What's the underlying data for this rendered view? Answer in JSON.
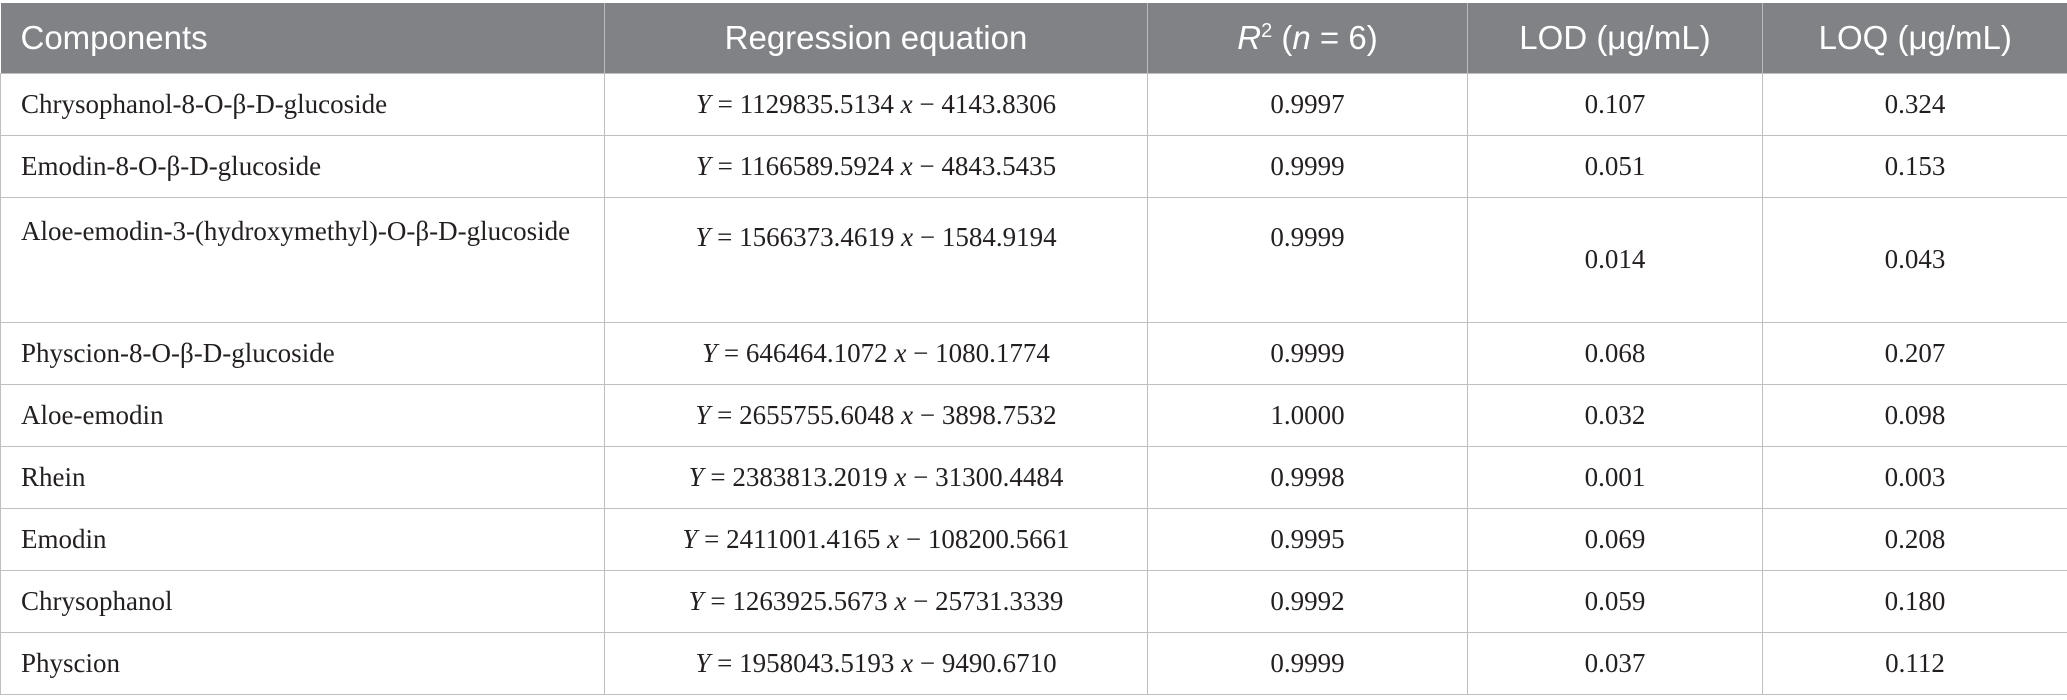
{
  "table": {
    "headers": {
      "components": "Components",
      "regression": "Regression equation",
      "r2_base": "R",
      "r2_sup": "2",
      "r2_open": " (",
      "r2_n": "n",
      "r2_close": " = 6)",
      "lod": "LOD (μg/mL)",
      "loq": "LOQ (μg/mL)"
    },
    "rows": [
      {
        "component": "Chrysophanol-8-O-β-D-glucoside",
        "eq_y": "Y",
        "eq_mid": " = 1129835.5134 ",
        "eq_x": "x",
        "eq_end": " − 4143.8306",
        "r2": "0.9997",
        "lod": "0.107",
        "loq": "0.324"
      },
      {
        "component": "Emodin-8-O-β-D-glucoside",
        "eq_y": "Y",
        "eq_mid": " = 1166589.5924 ",
        "eq_x": "x",
        "eq_end": " − 4843.5435",
        "r2": "0.9999",
        "lod": "0.051",
        "loq": "0.153"
      },
      {
        "component": "Aloe-emodin-3-(hydroxymethyl)-O-β-D-glucoside",
        "eq_y": "Y",
        "eq_mid": " = 1566373.4619 ",
        "eq_x": "x",
        "eq_end": " − 1584.9194",
        "r2": "0.9999",
        "lod": "0.014",
        "loq": "0.043"
      },
      {
        "component": "Physcion-8-O-β-D-glucoside",
        "eq_y": "Y",
        "eq_mid": " = 646464.1072 ",
        "eq_x": "x",
        "eq_end": " − 1080.1774",
        "r2": "0.9999",
        "lod": "0.068",
        "loq": "0.207"
      },
      {
        "component": "Aloe-emodin",
        "eq_y": "Y",
        "eq_mid": " = 2655755.6048 ",
        "eq_x": "x",
        "eq_end": " − 3898.7532",
        "r2": "1.0000",
        "lod": "0.032",
        "loq": "0.098"
      },
      {
        "component": "Rhein",
        "eq_y": "Y",
        "eq_mid": " = 2383813.2019 ",
        "eq_x": "x",
        "eq_end": " − 31300.4484",
        "r2": "0.9998",
        "lod": "0.001",
        "loq": "0.003"
      },
      {
        "component": "Emodin",
        "eq_y": "Y",
        "eq_mid": " = 2411001.4165 ",
        "eq_x": "x",
        "eq_end": " − 108200.5661",
        "r2": "0.9995",
        "lod": "0.069",
        "loq": "0.208"
      },
      {
        "component": "Chrysophanol",
        "eq_y": "Y",
        "eq_mid": " = 1263925.5673 ",
        "eq_x": "x",
        "eq_end": " − 25731.3339",
        "r2": "0.9992",
        "lod": "0.059",
        "loq": "0.180"
      },
      {
        "component": "Physcion",
        "eq_y": "Y",
        "eq_mid": " = 1958043.5193 ",
        "eq_x": "x",
        "eq_end": " − 9490.6710",
        "r2": "0.9999",
        "lod": "0.037",
        "loq": "0.112"
      }
    ]
  }
}
